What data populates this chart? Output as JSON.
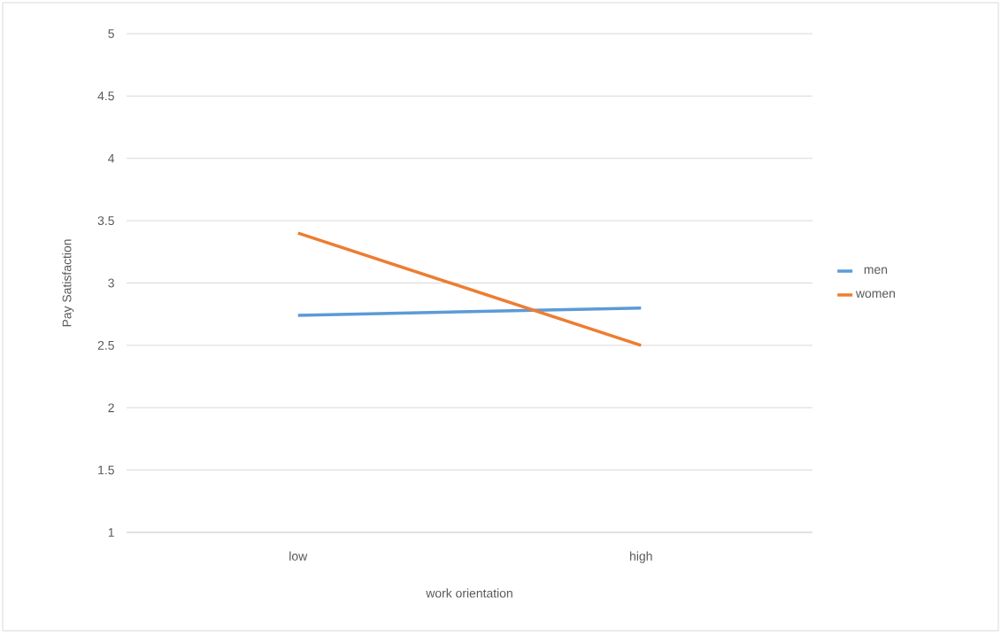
{
  "chart_data": {
    "type": "line",
    "xlabel": "work orientation",
    "ylabel": "Pay Satisfaction",
    "categories": [
      "low",
      "high"
    ],
    "series": [
      {
        "name": "men",
        "color": "#5b9bd5",
        "values": [
          2.74,
          2.8
        ]
      },
      {
        "name": "women",
        "color": "#ed7d31",
        "values": [
          3.4,
          2.5
        ]
      }
    ],
    "ylim": [
      1,
      5
    ],
    "yticks": [
      1,
      1.5,
      2,
      2.5,
      3,
      3.5,
      4,
      4.5,
      5
    ],
    "grid": "y",
    "legend": "right"
  }
}
